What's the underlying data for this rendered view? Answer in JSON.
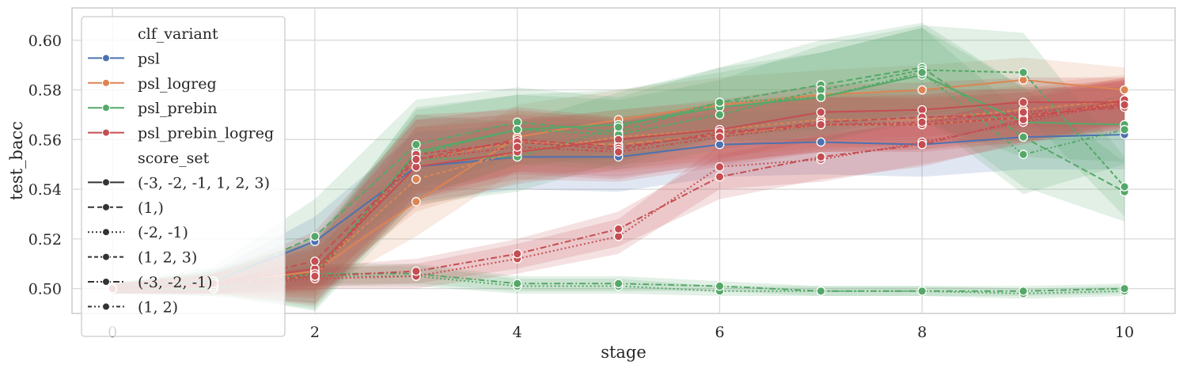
{
  "chart_data": {
    "type": "line",
    "xlabel": "stage",
    "ylabel": "test_bacc",
    "xlim": [
      -0.4,
      10.5
    ],
    "ylim": [
      0.49,
      0.613
    ],
    "xticks": [
      "0",
      "2",
      "4",
      "6",
      "8",
      "10"
    ],
    "yticks": [
      "0.50",
      "0.52",
      "0.54",
      "0.56",
      "0.58",
      "0.60"
    ],
    "grid": true,
    "legend_position": "upper-left",
    "legend": {
      "hue_title": "clf_variant",
      "hue_entries": [
        {
          "name": "psl",
          "color": "#4c72b0"
        },
        {
          "name": "psl_logreg",
          "color": "#dd8452"
        },
        {
          "name": "psl_prebin",
          "color": "#55a868"
        },
        {
          "name": "psl_prebin_logreg",
          "color": "#c44e52"
        }
      ],
      "style_title": "score_set",
      "style_entries": [
        {
          "name": "(-3, -2, -1, 1, 2, 3)",
          "dash": ""
        },
        {
          "name": "(1,)",
          "dash": "8,4"
        },
        {
          "name": "(-2, -1)",
          "dash": "2,3"
        },
        {
          "name": "(1, 2, 3)",
          "dash": "5,3"
        },
        {
          "name": "(-3, -2, -1)",
          "dash": "8,3,2,3"
        },
        {
          "name": "(1, 2)",
          "dash": "5,3,2,3,2,3"
        }
      ]
    },
    "x": [
      0,
      1,
      2,
      3,
      4,
      5,
      6,
      7,
      8,
      9,
      10
    ],
    "series": [
      {
        "clf_variant": "psl",
        "score_set": "(-3, -2, -1, 1, 2, 3)",
        "color": "#4c72b0",
        "dash": "",
        "values": [
          0.5,
          0.503,
          0.519,
          0.549,
          0.553,
          0.553,
          0.558,
          0.559,
          0.558,
          0.561,
          0.562
        ],
        "ci": [
          0.002,
          0.004,
          0.01,
          0.014,
          0.013,
          0.014,
          0.013,
          0.013,
          0.013,
          0.013,
          0.014
        ]
      },
      {
        "clf_variant": "psl_logreg",
        "score_set": "(-3, -2, -1, 1, 2, 3)",
        "color": "#dd8452",
        "dash": "",
        "values": [
          0.5,
          0.502,
          0.507,
          0.535,
          0.561,
          0.568,
          0.574,
          0.578,
          0.58,
          0.584,
          0.58
        ],
        "ci": [
          0.002,
          0.004,
          0.009,
          0.014,
          0.013,
          0.012,
          0.011,
          0.01,
          0.01,
          0.009,
          0.009
        ]
      },
      {
        "clf_variant": "psl_logreg",
        "score_set": "(1,)",
        "color": "#dd8452",
        "dash": "8,4",
        "values": [
          0.5,
          0.502,
          0.505,
          0.552,
          0.559,
          0.558,
          0.562,
          0.566,
          0.566,
          0.569,
          0.575
        ],
        "ci": [
          0.002,
          0.004,
          0.008,
          0.013,
          0.012,
          0.011,
          0.011,
          0.011,
          0.01,
          0.01,
          0.01
        ]
      },
      {
        "clf_variant": "psl_logreg",
        "score_set": "(1, 2, 3)",
        "color": "#dd8452",
        "dash": "5,3",
        "values": [
          0.5,
          0.502,
          0.507,
          0.544,
          0.555,
          0.561,
          0.564,
          0.568,
          0.568,
          0.572,
          0.576
        ],
        "ci": [
          0.002,
          0.004,
          0.008,
          0.013,
          0.012,
          0.011,
          0.011,
          0.011,
          0.01,
          0.01,
          0.01
        ]
      },
      {
        "clf_variant": "psl_prebin",
        "score_set": "(-3, -2, -1, 1, 2, 3)",
        "color": "#55a868",
        "dash": "",
        "values": [
          0.5,
          0.502,
          0.506,
          0.555,
          0.564,
          0.566,
          0.573,
          0.577,
          0.586,
          0.567,
          0.566
        ],
        "ci": [
          0.002,
          0.005,
          0.012,
          0.018,
          0.014,
          0.014,
          0.014,
          0.018,
          0.019,
          0.014,
          0.015
        ]
      },
      {
        "clf_variant": "psl_prebin",
        "score_set": "(1,)",
        "color": "#55a868",
        "dash": "8,4",
        "values": [
          0.5,
          0.503,
          0.521,
          0.558,
          0.567,
          0.563,
          0.575,
          0.582,
          0.589,
          0.561,
          0.539
        ],
        "ci": [
          0.002,
          0.006,
          0.015,
          0.018,
          0.014,
          0.014,
          0.014,
          0.018,
          0.018,
          0.02,
          0.012
        ]
      },
      {
        "clf_variant": "psl_prebin",
        "score_set": "(-2, -1)",
        "color": "#55a868",
        "dash": "2,3",
        "values": [
          0.5,
          0.5,
          0.505,
          0.505,
          0.501,
          0.501,
          0.499,
          0.499,
          0.499,
          0.498,
          0.499
        ],
        "ci": [
          0.002,
          0.002,
          0.004,
          0.004,
          0.003,
          0.003,
          0.002,
          0.002,
          0.002,
          0.002,
          0.002
        ]
      },
      {
        "clf_variant": "psl_prebin",
        "score_set": "(1, 2, 3)",
        "color": "#55a868",
        "dash": "5,3",
        "values": [
          0.5,
          0.502,
          0.506,
          0.554,
          0.564,
          0.562,
          0.57,
          0.58,
          0.588,
          0.587,
          0.541
        ],
        "ci": [
          0.002,
          0.005,
          0.014,
          0.018,
          0.014,
          0.014,
          0.014,
          0.018,
          0.018,
          0.016,
          0.012
        ]
      },
      {
        "clf_variant": "psl_prebin",
        "score_set": "(-3, -2, -1)",
        "color": "#55a868",
        "dash": "8,3,2,3",
        "values": [
          0.5,
          0.5,
          0.506,
          0.506,
          0.502,
          0.502,
          0.501,
          0.499,
          0.499,
          0.499,
          0.5
        ],
        "ci": [
          0.002,
          0.002,
          0.004,
          0.004,
          0.003,
          0.003,
          0.002,
          0.002,
          0.002,
          0.002,
          0.002
        ]
      },
      {
        "clf_variant": "psl_prebin",
        "score_set": "(1, 2)",
        "color": "#55a868",
        "dash": "5,3,2,3,2,3",
        "values": [
          0.5,
          0.503,
          0.505,
          0.552,
          0.553,
          0.565,
          0.575,
          0.577,
          0.587,
          0.554,
          0.564
        ],
        "ci": [
          0.002,
          0.005,
          0.014,
          0.018,
          0.014,
          0.014,
          0.014,
          0.018,
          0.018,
          0.016,
          0.014
        ]
      },
      {
        "clf_variant": "psl_prebin_logreg",
        "score_set": "(-3, -2, -1, 1, 2, 3)",
        "color": "#c44e52",
        "dash": "",
        "values": [
          0.5,
          0.502,
          0.508,
          0.549,
          0.555,
          0.56,
          0.564,
          0.571,
          0.572,
          0.575,
          0.575
        ],
        "ci": [
          0.002,
          0.004,
          0.012,
          0.016,
          0.013,
          0.012,
          0.012,
          0.011,
          0.011,
          0.01,
          0.01
        ]
      },
      {
        "clf_variant": "psl_prebin_logreg",
        "score_set": "(1,)",
        "color": "#c44e52",
        "dash": "8,4",
        "values": [
          0.5,
          0.502,
          0.511,
          0.552,
          0.56,
          0.557,
          0.562,
          0.567,
          0.569,
          0.57,
          0.573
        ],
        "ci": [
          0.002,
          0.004,
          0.012,
          0.016,
          0.013,
          0.012,
          0.012,
          0.011,
          0.011,
          0.01,
          0.01
        ]
      },
      {
        "clf_variant": "psl_prebin_logreg",
        "score_set": "(-2, -1)",
        "color": "#c44e52",
        "dash": "2,3",
        "values": [
          0.5,
          0.501,
          0.504,
          0.505,
          0.512,
          0.521,
          0.549,
          0.552,
          0.559,
          0.567,
          0.575
        ],
        "ci": [
          0.002,
          0.003,
          0.004,
          0.005,
          0.006,
          0.007,
          0.009,
          0.009,
          0.009,
          0.009,
          0.009
        ]
      },
      {
        "clf_variant": "psl_prebin_logreg",
        "score_set": "(1, 2, 3)",
        "color": "#c44e52",
        "dash": "5,3",
        "values": [
          0.5,
          0.502,
          0.506,
          0.554,
          0.559,
          0.556,
          0.563,
          0.566,
          0.566,
          0.569,
          0.574
        ],
        "ci": [
          0.002,
          0.004,
          0.012,
          0.016,
          0.013,
          0.012,
          0.012,
          0.011,
          0.011,
          0.01,
          0.01
        ]
      },
      {
        "clf_variant": "psl_prebin_logreg",
        "score_set": "(-3, -2, -1)",
        "color": "#c44e52",
        "dash": "8,3,2,3",
        "values": [
          0.5,
          0.501,
          0.505,
          0.507,
          0.514,
          0.524,
          0.545,
          0.553,
          0.558,
          0.568,
          0.576
        ],
        "ci": [
          0.002,
          0.003,
          0.004,
          0.005,
          0.006,
          0.007,
          0.009,
          0.009,
          0.009,
          0.009,
          0.009
        ]
      },
      {
        "clf_variant": "psl_prebin_logreg",
        "score_set": "(1, 2)",
        "color": "#c44e52",
        "dash": "5,3,2,3,2,3",
        "values": [
          0.5,
          0.502,
          0.505,
          0.552,
          0.557,
          0.555,
          0.561,
          0.566,
          0.567,
          0.571,
          0.574
        ],
        "ci": [
          0.002,
          0.004,
          0.012,
          0.016,
          0.013,
          0.012,
          0.012,
          0.011,
          0.011,
          0.01,
          0.01
        ]
      }
    ]
  }
}
